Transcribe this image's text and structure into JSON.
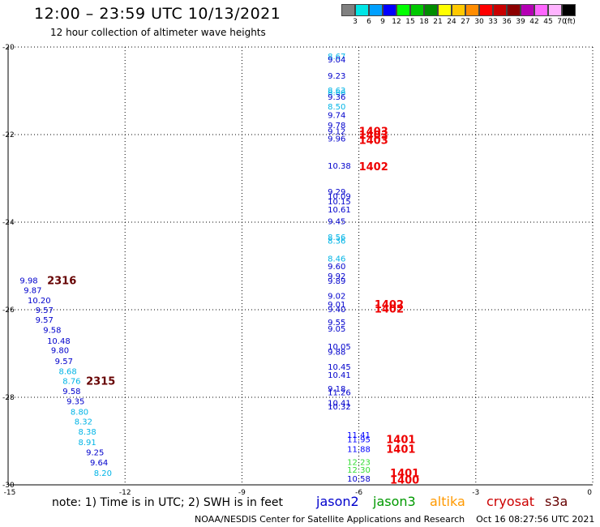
{
  "header": {
    "title": "12:00 – 23:59 UTC 10/13/2021",
    "subtitle": "12 hour collection of altimeter wave heights"
  },
  "legend": {
    "colors": [
      "#808080",
      "#00e5e5",
      "#00a0ff",
      "#0000ff",
      "#00ff00",
      "#00c800",
      "#008c00",
      "#ffff00",
      "#ffc800",
      "#ff8c00",
      "#ff0000",
      "#c80000",
      "#8c0000",
      "#b400b4",
      "#ff66ff",
      "#ffb4ff",
      "#000000"
    ],
    "labels": [
      "3",
      "6",
      "9",
      "12",
      "15",
      "18",
      "21",
      "24",
      "27",
      "30",
      "33",
      "36",
      "39",
      "42",
      "45",
      "70",
      "(ft)"
    ]
  },
  "note": "note:  1) Time is in UTC;  2) SWH is in feet",
  "satellites": [
    {
      "name": "jason2",
      "color": "#0000cc"
    },
    {
      "name": "jason3",
      "color": "#009900"
    },
    {
      "name": "altika",
      "color": "#ff9900"
    },
    {
      "name": "cryosat",
      "color": "#cc0000"
    },
    {
      "name": "s3a",
      "color": "#660000"
    }
  ],
  "footer": {
    "source": "NOAA/NESDIS Center for Satellite Applications and Research",
    "timestamp": "Oct 16 08:27:56 UTC 2021"
  },
  "chart_data": {
    "type": "scatter",
    "xlim": [
      -15,
      0
    ],
    "ylim": [
      -30,
      -20
    ],
    "xticks": [
      -15,
      -12,
      -9,
      -6,
      -3,
      0
    ],
    "yticks": [
      -20,
      -22,
      -24,
      -26,
      -28,
      -30
    ],
    "grid": true,
    "colors": {
      "c6": "#00b4e6",
      "c9": "#0000cc",
      "c12": "#0000ff",
      "green": "#33dd33",
      "red": "#ee0000",
      "maroon": "#660000"
    },
    "points": [
      {
        "x": -6.8,
        "y": -20.2,
        "v": "8.67",
        "c": "c6"
      },
      {
        "x": -6.8,
        "y": -20.28,
        "v": "9.04",
        "c": "c9"
      },
      {
        "x": -6.8,
        "y": -20.65,
        "v": "9.23",
        "c": "c9"
      },
      {
        "x": -6.8,
        "y": -20.98,
        "v": "8.63",
        "c": "c6"
      },
      {
        "x": -6.8,
        "y": -21.03,
        "v": "8.66",
        "c": "c6"
      },
      {
        "x": -6.8,
        "y": -21.13,
        "v": "9.36",
        "c": "c9"
      },
      {
        "x": -6.8,
        "y": -21.35,
        "v": "8.50",
        "c": "c6"
      },
      {
        "x": -6.8,
        "y": -21.55,
        "v": "9.74",
        "c": "c9"
      },
      {
        "x": -6.8,
        "y": -21.78,
        "v": "9.78",
        "c": "c9"
      },
      {
        "x": -6.8,
        "y": -21.92,
        "v": "9.12",
        "c": "c9"
      },
      {
        "x": -6.8,
        "y": -22.08,
        "v": "9.96",
        "c": "c9"
      },
      {
        "x": -6.8,
        "y": -22.7,
        "v": "10.38",
        "c": "c9"
      },
      {
        "x": -6.8,
        "y": -23.3,
        "v": "9.29",
        "c": "c9"
      },
      {
        "x": -6.8,
        "y": -23.4,
        "v": "10.09",
        "c": "c9"
      },
      {
        "x": -6.8,
        "y": -23.52,
        "v": "10.15",
        "c": "c9"
      },
      {
        "x": -6.8,
        "y": -23.7,
        "v": "10.61",
        "c": "c9"
      },
      {
        "x": -6.8,
        "y": -23.97,
        "v": "9.45",
        "c": "c9"
      },
      {
        "x": -6.8,
        "y": -24.33,
        "v": "8.56",
        "c": "c6"
      },
      {
        "x": -6.8,
        "y": -24.42,
        "v": "8.36",
        "c": "c6"
      },
      {
        "x": -6.8,
        "y": -24.82,
        "v": "8.46",
        "c": "c6"
      },
      {
        "x": -6.8,
        "y": -25.0,
        "v": "9.60",
        "c": "c9"
      },
      {
        "x": -6.8,
        "y": -25.22,
        "v": "9.92",
        "c": "c9"
      },
      {
        "x": -6.8,
        "y": -25.33,
        "v": "9.89",
        "c": "c9"
      },
      {
        "x": -6.8,
        "y": -25.68,
        "v": "9.02",
        "c": "c9"
      },
      {
        "x": -6.8,
        "y": -25.87,
        "v": "9.01",
        "c": "c9"
      },
      {
        "x": -6.8,
        "y": -25.98,
        "v": "9.40",
        "c": "c9"
      },
      {
        "x": -6.8,
        "y": -26.28,
        "v": "9.55",
        "c": "c9"
      },
      {
        "x": -6.8,
        "y": -26.43,
        "v": "9.05",
        "c": "c9"
      },
      {
        "x": -6.8,
        "y": -26.83,
        "v": "10.05",
        "c": "c9"
      },
      {
        "x": -6.8,
        "y": -26.95,
        "v": "9.88",
        "c": "c9"
      },
      {
        "x": -6.8,
        "y": -27.3,
        "v": "10.45",
        "c": "c9"
      },
      {
        "x": -6.8,
        "y": -27.48,
        "v": "10.41",
        "c": "c9"
      },
      {
        "x": -6.8,
        "y": -27.8,
        "v": "9.18",
        "c": "c9"
      },
      {
        "x": -6.8,
        "y": -27.88,
        "v": "11.26",
        "c": "c9"
      },
      {
        "x": -6.8,
        "y": -28.12,
        "v": "10.41",
        "c": "c9"
      },
      {
        "x": -6.8,
        "y": -28.2,
        "v": "10.32",
        "c": "c9"
      },
      {
        "x": -6.3,
        "y": -28.85,
        "v": "11.41",
        "c": "c12"
      },
      {
        "x": -6.3,
        "y": -28.95,
        "v": "11.95",
        "c": "c12"
      },
      {
        "x": -6.3,
        "y": -29.18,
        "v": "11.88",
        "c": "c12"
      },
      {
        "x": -6.3,
        "y": -29.47,
        "v": "12.23",
        "c": "green"
      },
      {
        "x": -6.3,
        "y": -29.65,
        "v": "12.30",
        "c": "green"
      },
      {
        "x": -6.3,
        "y": -29.85,
        "v": "10.58",
        "c": "c9"
      },
      {
        "x": -14.7,
        "y": -25.32,
        "v": "9.98",
        "c": "c9"
      },
      {
        "x": -14.6,
        "y": -25.55,
        "v": "9.87",
        "c": "c9"
      },
      {
        "x": -14.5,
        "y": -25.78,
        "v": "10.20",
        "c": "c9"
      },
      {
        "x": -14.3,
        "y": -26.0,
        "v": "9.57",
        "c": "c9"
      },
      {
        "x": -14.3,
        "y": -26.22,
        "v": "9.57",
        "c": "c9"
      },
      {
        "x": -14.1,
        "y": -26.45,
        "v": "9.58",
        "c": "c9"
      },
      {
        "x": -14.0,
        "y": -26.7,
        "v": "10.48",
        "c": "c9"
      },
      {
        "x": -13.9,
        "y": -26.92,
        "v": "9.80",
        "c": "c9"
      },
      {
        "x": -13.8,
        "y": -27.17,
        "v": "9.57",
        "c": "c9"
      },
      {
        "x": -13.7,
        "y": -27.4,
        "v": "8.68",
        "c": "c6"
      },
      {
        "x": -13.6,
        "y": -27.62,
        "v": "8.76",
        "c": "c6"
      },
      {
        "x": -13.6,
        "y": -27.85,
        "v": "9.58",
        "c": "c9"
      },
      {
        "x": -13.5,
        "y": -28.08,
        "v": "9.35",
        "c": "c9"
      },
      {
        "x": -13.4,
        "y": -28.32,
        "v": "8.80",
        "c": "c6"
      },
      {
        "x": -13.3,
        "y": -28.55,
        "v": "8.32",
        "c": "c6"
      },
      {
        "x": -13.2,
        "y": -28.78,
        "v": "8.38",
        "c": "c6"
      },
      {
        "x": -13.2,
        "y": -29.02,
        "v": "8.91",
        "c": "c6"
      },
      {
        "x": -13.0,
        "y": -29.25,
        "v": "9.25",
        "c": "c9"
      },
      {
        "x": -12.9,
        "y": -29.48,
        "v": "9.64",
        "c": "c9"
      },
      {
        "x": -12.8,
        "y": -29.72,
        "v": "8.20",
        "c": "c6"
      }
    ],
    "labels": [
      {
        "x": -6.0,
        "y": -21.92,
        "v": "1403",
        "c": "red"
      },
      {
        "x": -6.0,
        "y": -22.0,
        "v": "1403",
        "c": "red"
      },
      {
        "x": -6.0,
        "y": -22.12,
        "v": "1403",
        "c": "red"
      },
      {
        "x": -6.0,
        "y": -22.72,
        "v": "1402",
        "c": "red"
      },
      {
        "x": -5.6,
        "y": -25.87,
        "v": "1402",
        "c": "red"
      },
      {
        "x": -5.6,
        "y": -25.97,
        "v": "1402",
        "c": "red"
      },
      {
        "x": -5.3,
        "y": -28.95,
        "v": "1401",
        "c": "red"
      },
      {
        "x": -5.3,
        "y": -29.18,
        "v": "1401",
        "c": "red"
      },
      {
        "x": -5.2,
        "y": -29.72,
        "v": "1401",
        "c": "red"
      },
      {
        "x": -5.2,
        "y": -29.88,
        "v": "1400",
        "c": "red"
      },
      {
        "x": -14.0,
        "y": -25.32,
        "v": "2316",
        "c": "maroon"
      },
      {
        "x": -13.0,
        "y": -27.62,
        "v": "2315",
        "c": "maroon"
      }
    ]
  }
}
